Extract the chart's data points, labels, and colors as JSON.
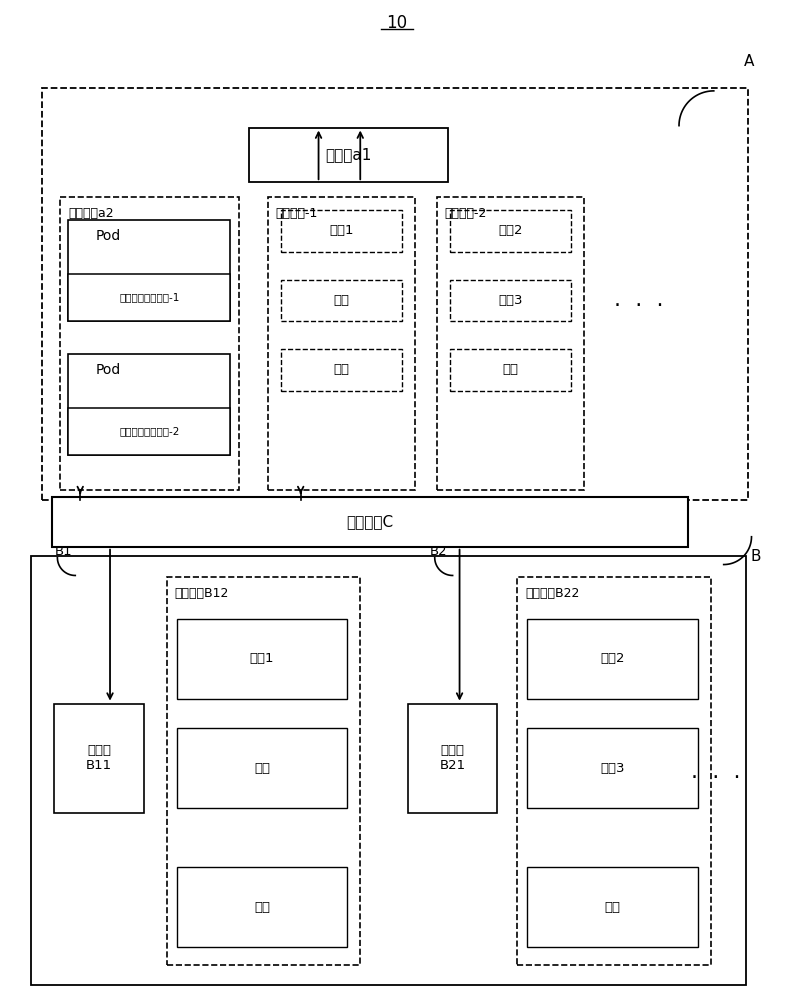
{
  "fig_width": 7.94,
  "fig_height": 10.0,
  "bg_color": "#ffffff",
  "title_label": "10",
  "label_A": "A",
  "label_B": "B",
  "label_B1": "B1",
  "label_B2": "B2",
  "text_kongzhimian_a1": "控制面a1",
  "text_shijie_a2": "实际节点a2",
  "text_xuni_1": "虚拟节点-1",
  "text_xuni_2": "虚拟节点-2",
  "text_pod": "Pod",
  "text_vnm1": "虚拟节点管理组件-1",
  "text_vnm2": "虚拟节点管理组件-2",
  "text_renwu1_v1": "任务1",
  "text_renwu2_v1": "任务",
  "text_renwu3_v1": "任务",
  "text_renwu1_v2": "任务2",
  "text_renwu2_v2": "任务3",
  "text_renwu3_v2": "任务",
  "text_daili": "代理组件C",
  "text_kongzhi_b11": "控制面\nB11",
  "text_shijie_b12": "实际节点B12",
  "text_renwu1_b12": "任务1",
  "text_renwu2_b12": "任务",
  "text_renwu3_b12": "任务",
  "text_kongzhi_b21": "控制面\nB21",
  "text_shijie_b22": "实际节点B22",
  "text_renwu1_b22": "任务2",
  "text_renwu2_b22": "任务3",
  "text_renwu3_b22": "任务",
  "dots": "·  ·  ·"
}
